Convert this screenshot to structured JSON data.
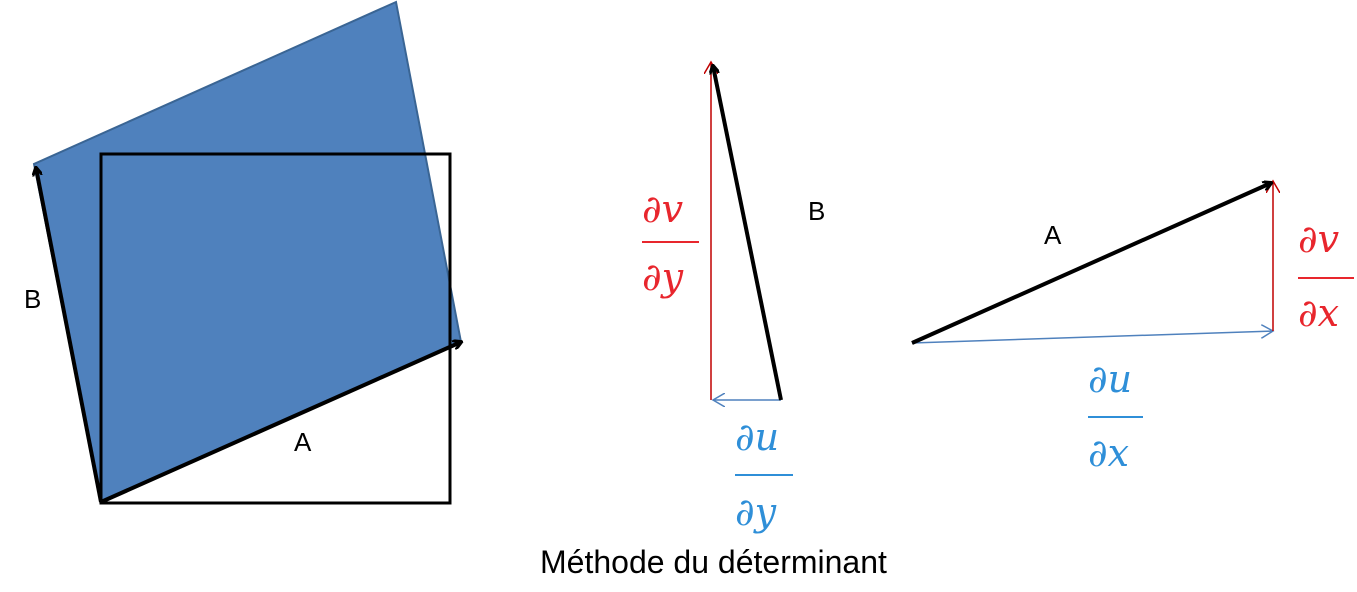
{
  "caption": "Méthode du déterminant",
  "labels": {
    "vector_a": "A",
    "vector_b": "B"
  },
  "partials": {
    "dv_dy": {
      "numerator": "∂v",
      "denominator": "∂y"
    },
    "du_dy": {
      "numerator": "∂u",
      "denominator": "∂y"
    },
    "dv_dx": {
      "numerator": "∂v",
      "denominator": "∂x"
    },
    "du_dx": {
      "numerator": "∂u",
      "denominator": "∂x"
    }
  },
  "colors": {
    "parallelogram_fill": "#4f81bd",
    "parallelogram_stroke": "#3a6594",
    "vector": "#000000",
    "v_component": "#e8262d",
    "u_component": "#2f8fd8",
    "v_line": "#c00000",
    "u_line": "#4f81bd"
  }
}
